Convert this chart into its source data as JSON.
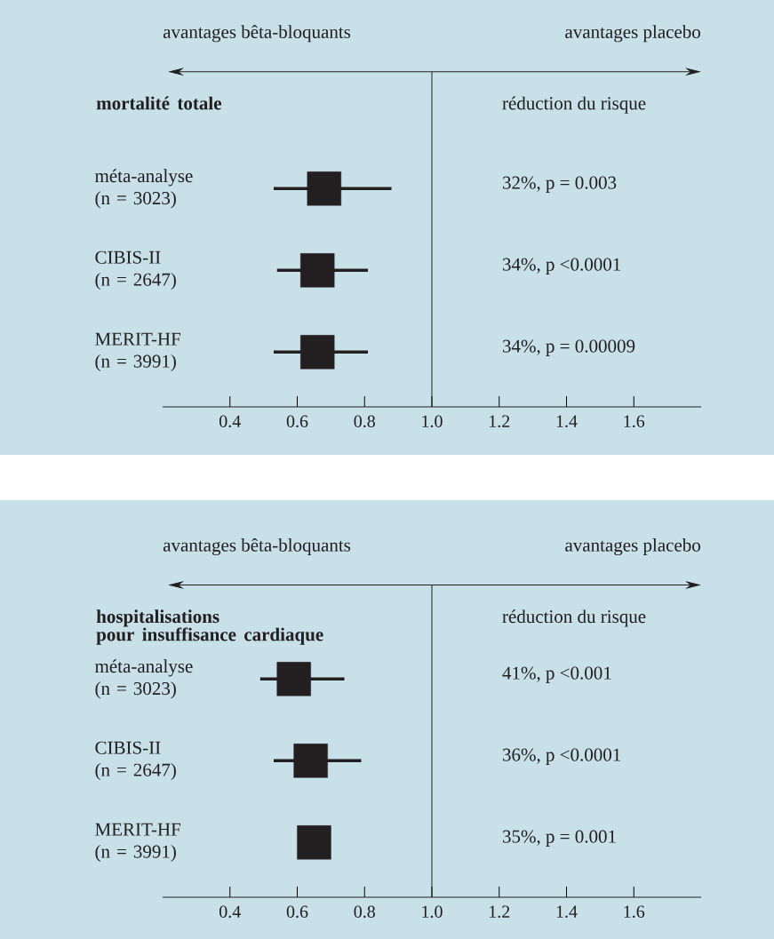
{
  "chart_data": [
    {
      "type": "scatter",
      "orientation": "horizontal",
      "title": "mortalité totale",
      "categories": [
        "méta-analyse (n = 3023)",
        "CIBIS-II (n = 2647)",
        "MERIT-HF (n = 3991)"
      ],
      "values": [
        0.68,
        0.66,
        0.66
      ],
      "errors": [
        [
          0.53,
          0.88
        ],
        [
          0.54,
          0.81
        ],
        [
          0.53,
          0.81
        ]
      ],
      "color": "#231f20",
      "marker": "square",
      "xlim": [
        0.2,
        1.8
      ],
      "xticks": [
        {
          "value": 0.4,
          "label": "0.4"
        },
        {
          "value": 0.6,
          "label": "0.6"
        },
        {
          "value": 0.8,
          "label": "0.8"
        },
        {
          "value": 1.0,
          "label": "1.0"
        },
        {
          "value": 1.2,
          "label": "1.2"
        },
        {
          "value": 1.4,
          "label": "1.4"
        },
        {
          "value": 1.6,
          "label": "1.6"
        }
      ],
      "ref_lines": [
        {
          "axis": "x",
          "value": 1.0
        }
      ],
      "annotations": [
        "avantages bêta-bloquants",
        "avantages placebo",
        "réduction du risque",
        "32%, p = 0.003",
        "34%, p <0.0001",
        "34%, p = 0.00009"
      ]
    },
    {
      "type": "scatter",
      "orientation": "horizontal",
      "title": "hospitalisations pour insuffisance cardiaque",
      "categories": [
        "méta-analyse (n = 3023)",
        "CIBIS-II (n = 2647)",
        "MERIT-HF (n = 3991)"
      ],
      "values": [
        0.59,
        0.64,
        0.65
      ],
      "errors": [
        [
          0.49,
          0.74
        ],
        [
          0.53,
          0.79
        ],
        null
      ],
      "color": "#231f20",
      "marker": "square",
      "xlim": [
        0.2,
        1.8
      ],
      "xticks": [
        {
          "value": 0.4,
          "label": "0.4"
        },
        {
          "value": 0.6,
          "label": "0.6"
        },
        {
          "value": 0.8,
          "label": "0.8"
        },
        {
          "value": 1.0,
          "label": "1.0"
        },
        {
          "value": 1.2,
          "label": "1.2"
        },
        {
          "value": 1.4,
          "label": "1.4"
        },
        {
          "value": 1.6,
          "label": "1.6"
        }
      ],
      "ref_lines": [
        {
          "axis": "x",
          "value": 1.0
        }
      ],
      "annotations": [
        "avantages bêta-bloquants",
        "avantages placebo",
        "réduction du risque",
        "41%, p <0.001",
        "36%, p <0.0001",
        "35%, p = 0.001"
      ]
    }
  ]
}
